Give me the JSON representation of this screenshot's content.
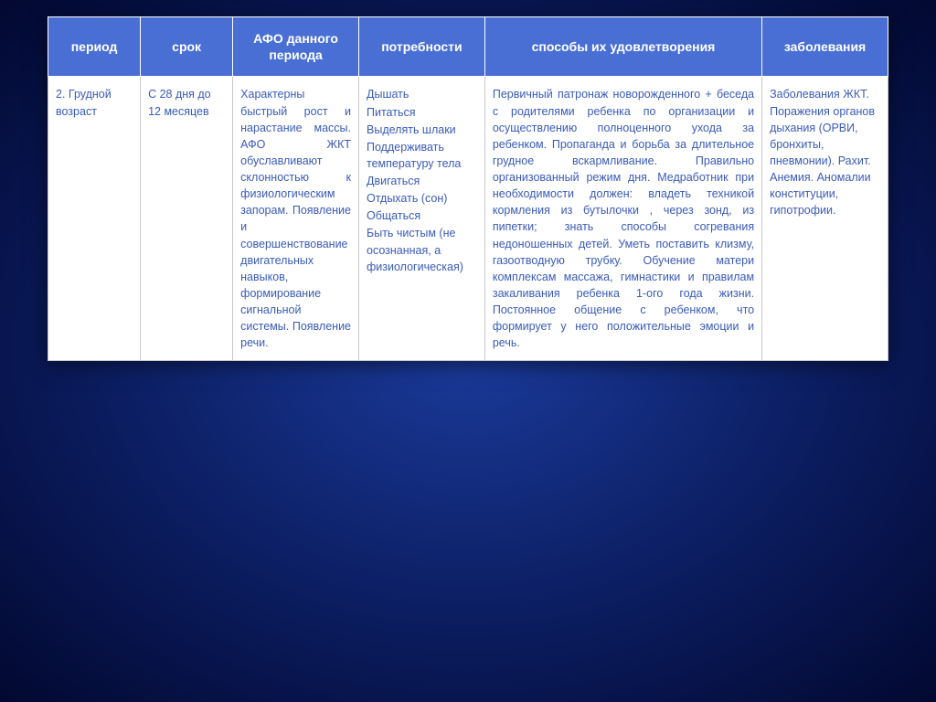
{
  "table": {
    "columns": [
      {
        "label": "период",
        "width": "11%"
      },
      {
        "label": "срок",
        "width": "11%"
      },
      {
        "label": "АФО данного периода",
        "width": "15%"
      },
      {
        "label": "потребности",
        "width": "15%"
      },
      {
        "label": "способы их удовлетворения",
        "width": "33%"
      },
      {
        "label": "заболевания",
        "width": "15%"
      }
    ],
    "row": {
      "period": "2. Грудной возраст",
      "term": "С 28 дня до 12 месяцев",
      "afo": "Характерны быстрый рост и нарастание массы. АФО ЖКТ обуславливают склонностью к физиологическим запорам. Появление и совершенствование двигательных навыков, формирование сигнальной системы. Появление речи.",
      "needs": [
        "Дышать",
        "Питаться",
        "Выделять шлаки",
        "Поддерживать температуру тела",
        "Двигаться",
        "Отдыхать (сон)",
        "Общаться",
        "Быть чистым (не осознанная, а физиологическая)"
      ],
      "methods": "Первичный патронаж новорожденного + беседа с родителями ребенка по организации и осуществлению полноценного ухода за ребенком. Пропаганда и борьба за длительное грудное вскармливание. Правильно организованный режим дня. Медработник при необходимости должен: владеть техникой кормления из бутылочки , через зонд, из пипетки; знать способы согревания недоношенных детей. Уметь поставить клизму, газоотводную трубку. Обучение матери комплексам массажа, гимнастики и правилам закаливания ребенка 1-ого года жизни. Постоянное общение с ребенком, что формирует у него положительные эмоции и речь.",
      "diseases": "Заболевания ЖКТ. Поражения органов дыхания (ОРВИ, бронхиты, пневмонии). Рахит. Анемия. Аномалии конституции, гипотрофии."
    },
    "header_bg": "#4a6fd4",
    "header_color": "#ffffff",
    "cell_color": "#3a5bb8",
    "border_color": "#c8c8c8",
    "background": "#ffffff"
  },
  "slide_bg_gradient": [
    "#1a3a9a",
    "#0a1a5a",
    "#020830"
  ]
}
